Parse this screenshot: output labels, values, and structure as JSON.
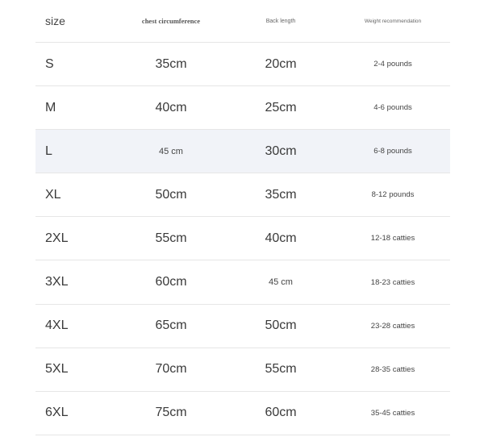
{
  "table": {
    "header": [
      "size",
      "chest circumference",
      "Back length",
      "Weight recommendation"
    ],
    "rows": [
      [
        "S",
        "35cm",
        "20cm",
        "2-4 pounds"
      ],
      [
        "M",
        "40cm",
        "25cm",
        "4-6 pounds"
      ],
      [
        "L",
        "45 cm",
        "30cm",
        "6-8 pounds"
      ],
      [
        "XL",
        "50cm",
        "35cm",
        "8-12 pounds"
      ],
      [
        "2XL",
        "55cm",
        "40cm",
        "12-18 catties"
      ],
      [
        "3XL",
        "60cm",
        "45 cm",
        "18-23 catties"
      ],
      [
        "4XL",
        "65cm",
        "50cm",
        "23-28 catties"
      ],
      [
        "5XL",
        "70cm",
        "55cm",
        "28-35 catties"
      ],
      [
        "6XL",
        "75cm",
        "60cm",
        "35-45 catties"
      ]
    ]
  }
}
